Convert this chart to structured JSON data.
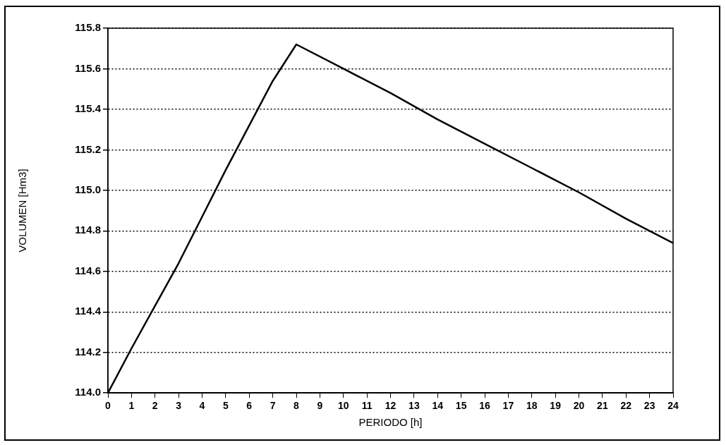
{
  "chart_data": {
    "type": "line",
    "xlabel": "PERIODO [h]",
    "ylabel": "VOLUMEN [Hm3]",
    "x": [
      0,
      1,
      2,
      3,
      4,
      5,
      6,
      7,
      8,
      10,
      12,
      14,
      16,
      18,
      20,
      22,
      24
    ],
    "series": [
      {
        "color": "#000000",
        "values": [
          114.0,
          114.22,
          114.43,
          114.64,
          114.87,
          115.1,
          115.32,
          115.54,
          115.72,
          115.6,
          115.48,
          115.35,
          115.23,
          115.11,
          114.99,
          114.86,
          114.74
        ]
      }
    ],
    "xlim": [
      0,
      24
    ],
    "xticks": [
      0,
      1,
      2,
      3,
      4,
      5,
      6,
      7,
      8,
      9,
      10,
      11,
      12,
      13,
      14,
      15,
      16,
      17,
      18,
      19,
      20,
      21,
      22,
      23,
      24
    ],
    "ylim": [
      114,
      115.8
    ],
    "yticks": [
      {
        "value": 114,
        "label": "114.0"
      },
      114.2,
      114.4,
      114.6,
      114.8,
      {
        "value": 115,
        "label": "115.0"
      },
      115.2,
      115.4,
      115.6,
      115.8
    ],
    "grid": "y",
    "legend": false,
    "marker": "none",
    "line_style": "solid"
  }
}
